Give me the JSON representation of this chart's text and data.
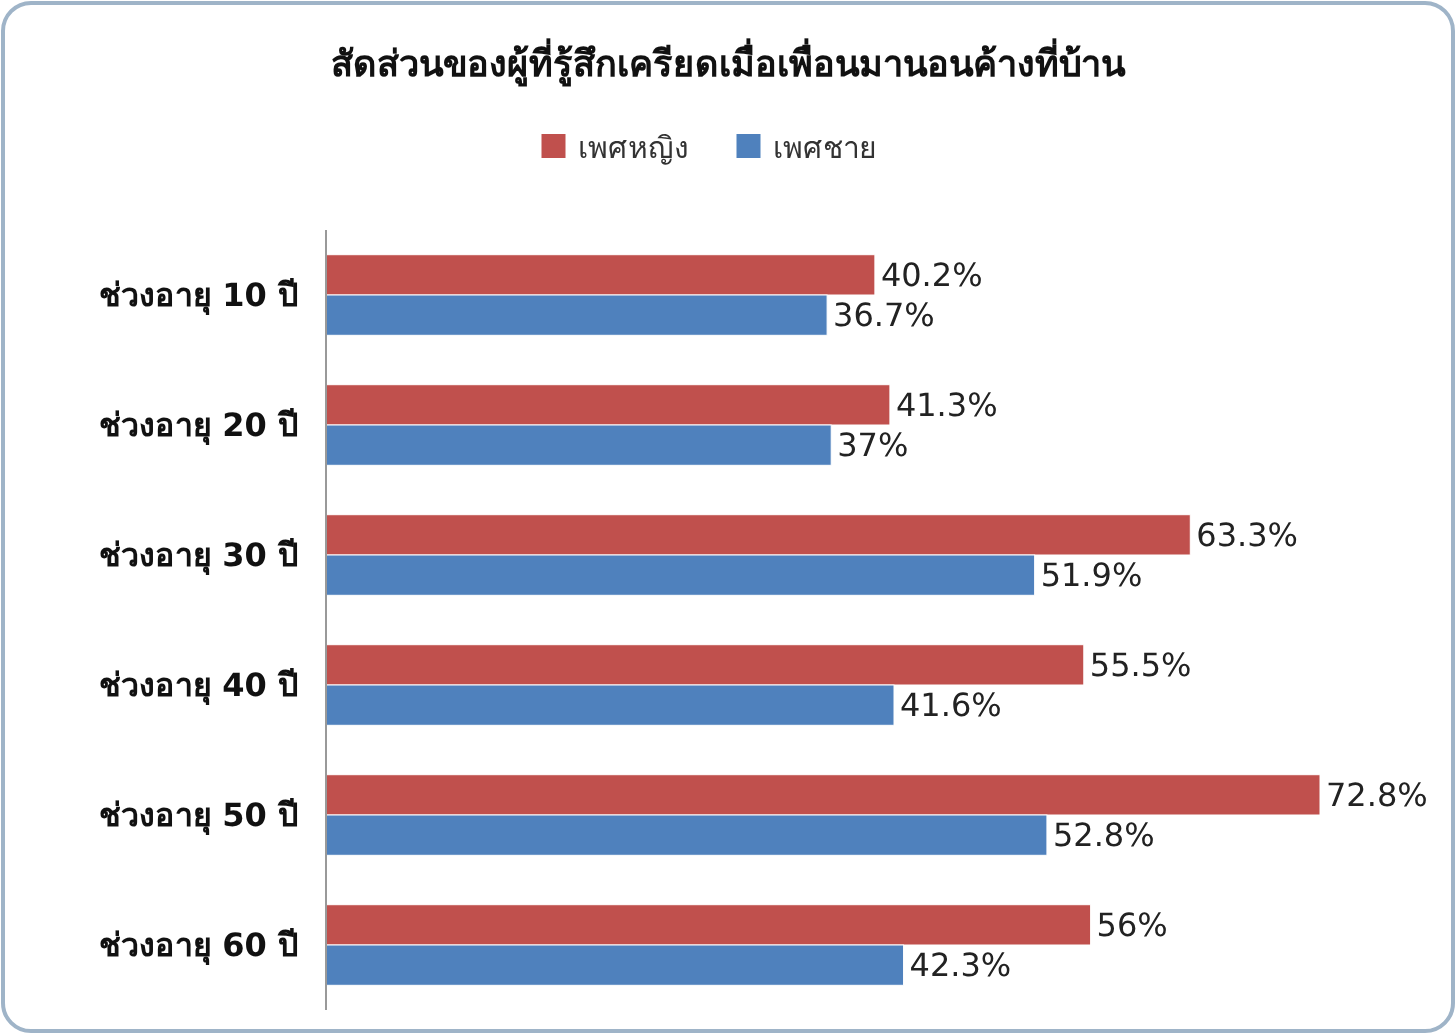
{
  "chart_data": {
    "type": "bar",
    "orientation": "horizontal",
    "title": "สัดส่วนของผู้ที่รู้สึกเครียดเมื่อเพื่อนมานอนค้างที่บ้าน",
    "categories": [
      "ช่วงอายุ 10 ปี",
      "ช่วงอายุ 20 ปี",
      "ช่วงอายุ 30 ปี",
      "ช่วงอายุ 40 ปี",
      "ช่วงอายุ 50 ปี",
      "ช่วงอายุ 60 ปี"
    ],
    "tick_labels": "y",
    "legend": "top",
    "series": [
      {
        "name": "เพศหญิง",
        "color": "#c0504d",
        "values": [
          40.2,
          41.3,
          63.3,
          55.5,
          72.8,
          56
        ],
        "value_labels": [
          "40.2%",
          "41.3%",
          "63.3%",
          "55.5%",
          "72.8%",
          "56%"
        ]
      },
      {
        "name": "เพศชาย",
        "color": "#4f81bd",
        "values": [
          36.7,
          37,
          51.9,
          41.6,
          52.8,
          42.3
        ],
        "value_labels": [
          "36.7%",
          "37%",
          "51.9%",
          "41.6%",
          "52.8%",
          "42.3%"
        ]
      }
    ]
  }
}
